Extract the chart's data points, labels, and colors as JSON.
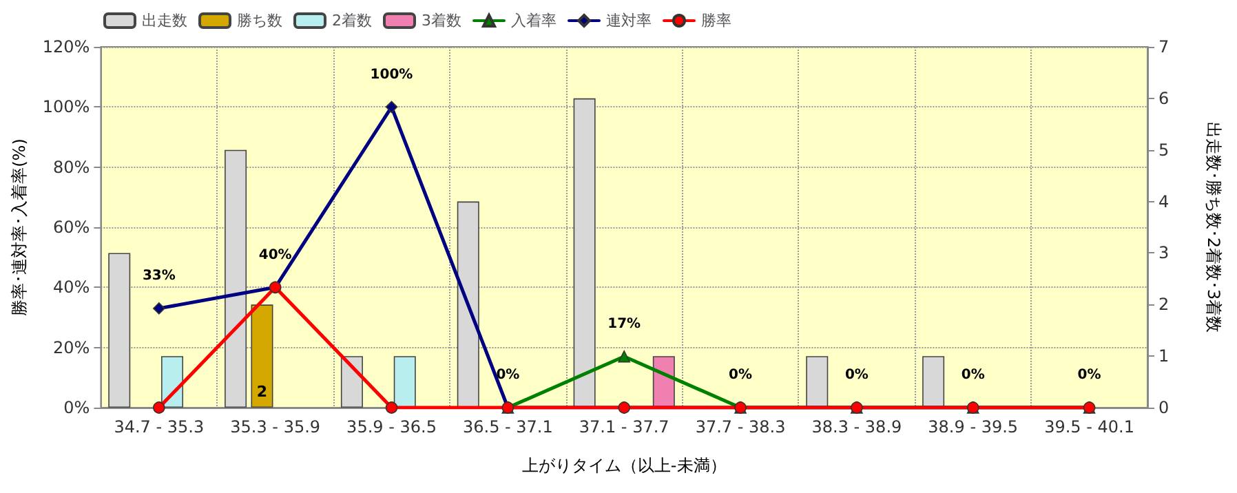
{
  "chart_data": {
    "type": "bar",
    "xlabel": "上がりタイム（以上-未満）",
    "ylabel": "勝率･連対率･入着率(%)",
    "y2label": "出走数･勝ち数･2着数･3着数",
    "categories": [
      "34.7 - 35.3",
      "35.3 - 35.9",
      "35.9 - 36.5",
      "36.5 - 37.1",
      "37.1 - 37.7",
      "37.7 - 38.3",
      "38.3 - 38.9",
      "38.9 - 39.5",
      "39.5 - 40.1"
    ],
    "series": [
      {
        "name": "出走数",
        "axis": "y2",
        "color": "#d8d8d8",
        "values": [
          3,
          5,
          1,
          4,
          6,
          0,
          1,
          1,
          0
        ]
      },
      {
        "name": "勝ち数",
        "axis": "y2",
        "color": "#d4a800",
        "values": [
          0,
          2,
          0,
          0,
          0,
          0,
          0,
          0,
          0
        ],
        "value_labels": [
          null,
          "2",
          null,
          null,
          null,
          null,
          null,
          null,
          null
        ]
      },
      {
        "name": "2着数",
        "axis": "y2",
        "color": "#b8eeee",
        "values": [
          1,
          0,
          1,
          0,
          0,
          0,
          0,
          0,
          0
        ]
      },
      {
        "name": "3着数",
        "axis": "y2",
        "color": "#f080b0",
        "values": [
          0,
          0,
          0,
          0,
          1,
          0,
          0,
          0,
          0
        ]
      },
      {
        "name": "入着率",
        "type": "line",
        "color": "#008000",
        "marker": "triangle",
        "values": [
          null,
          null,
          null,
          0,
          17,
          0,
          0,
          0,
          0
        ],
        "value_labels": [
          null,
          null,
          null,
          null,
          "17%",
          null,
          null,
          null,
          null
        ]
      },
      {
        "name": "連対率",
        "type": "line",
        "color": "#000080",
        "marker": "diamond",
        "values": [
          33,
          40,
          100,
          0,
          0,
          0,
          0,
          0,
          0
        ],
        "value_labels": [
          "33%",
          "40%",
          "100%",
          "0%",
          null,
          "0%",
          "0%",
          "0%",
          "0%"
        ]
      },
      {
        "name": "勝率",
        "type": "line",
        "color": "#ff0000",
        "marker": "circle",
        "values": [
          0,
          40,
          0,
          0,
          0,
          0,
          0,
          0,
          0
        ]
      }
    ],
    "ylim": [
      0,
      120
    ],
    "yticks": [
      {
        "value": 0,
        "label": "0%"
      },
      {
        "value": 20,
        "label": "20%"
      },
      {
        "value": 40,
        "label": "40%"
      },
      {
        "value": 60,
        "label": "60%"
      },
      {
        "value": 80,
        "label": "80%"
      },
      {
        "value": 100,
        "label": "100%"
      },
      {
        "value": 120,
        "label": "120%"
      }
    ],
    "y2lim": [
      0,
      7
    ],
    "y2ticks": [
      0,
      1,
      2,
      3,
      4,
      5,
      6,
      7
    ],
    "grid": true,
    "legend": "top left"
  }
}
